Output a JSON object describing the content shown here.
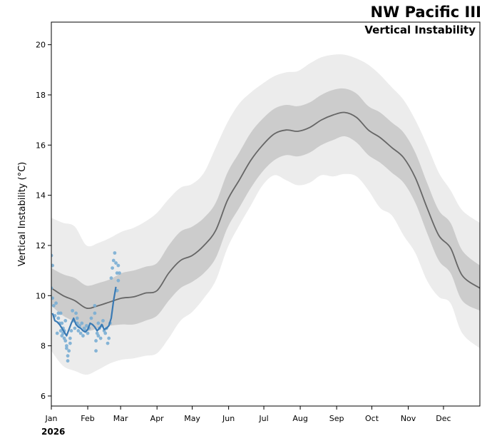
{
  "chart_data": {
    "type": "line",
    "title": "NW Pacific III",
    "subtitle": "Vertical Instability",
    "ylabel": "Vertical Instability ($^\\circ$C)",
    "ylabel_display": "Vertical Instability (°C)",
    "xlabel": "",
    "year_label": "2026",
    "xlim_day": [
      0,
      365
    ],
    "ylim": [
      5.6,
      20.9
    ],
    "yticks": [
      6,
      8,
      10,
      12,
      14,
      16,
      18,
      20
    ],
    "months": [
      {
        "label": "Jan",
        "day": 0
      },
      {
        "label": "Feb",
        "day": 31
      },
      {
        "label": "Mar",
        "day": 59
      },
      {
        "label": "Apr",
        "day": 90
      },
      {
        "label": "May",
        "day": 120
      },
      {
        "label": "Jun",
        "day": 151
      },
      {
        "label": "Jul",
        "day": 181
      },
      {
        "label": "Aug",
        "day": 212
      },
      {
        "label": "Sep",
        "day": 243
      },
      {
        "label": "Oct",
        "day": 273
      },
      {
        "label": "Nov",
        "day": 304
      },
      {
        "label": "Dec",
        "day": 334
      }
    ],
    "climatology": {
      "day": [
        0,
        10,
        20,
        30,
        40,
        50,
        60,
        70,
        80,
        90,
        100,
        110,
        120,
        130,
        140,
        150,
        160,
        170,
        180,
        190,
        200,
        210,
        220,
        230,
        240,
        250,
        260,
        270,
        280,
        290,
        300,
        310,
        320,
        330,
        340,
        350,
        365
      ],
      "mean": [
        10.3,
        10.0,
        9.8,
        9.5,
        9.6,
        9.75,
        9.9,
        9.95,
        10.1,
        10.2,
        10.9,
        11.4,
        11.6,
        12.0,
        12.6,
        13.8,
        14.6,
        15.4,
        16.0,
        16.45,
        16.6,
        16.55,
        16.7,
        17.0,
        17.2,
        17.3,
        17.1,
        16.6,
        16.3,
        15.9,
        15.5,
        14.7,
        13.5,
        12.4,
        11.9,
        10.8,
        10.3
      ],
      "inner_lower": [
        9.6,
        9.2,
        8.95,
        8.6,
        8.7,
        8.8,
        8.85,
        8.85,
        9.0,
        9.2,
        9.8,
        10.3,
        10.55,
        10.9,
        11.5,
        12.7,
        13.5,
        14.3,
        14.95,
        15.4,
        15.6,
        15.55,
        15.7,
        16.0,
        16.2,
        16.35,
        16.1,
        15.6,
        15.3,
        14.9,
        14.5,
        13.7,
        12.5,
        11.4,
        10.9,
        9.8,
        9.4
      ],
      "inner_upper": [
        11.1,
        10.85,
        10.7,
        10.4,
        10.5,
        10.65,
        10.9,
        11.0,
        11.15,
        11.3,
        12.0,
        12.55,
        12.75,
        13.1,
        13.7,
        14.9,
        15.7,
        16.5,
        17.05,
        17.45,
        17.6,
        17.55,
        17.7,
        18.0,
        18.2,
        18.25,
        18.05,
        17.55,
        17.3,
        16.9,
        16.5,
        15.7,
        14.5,
        13.4,
        12.9,
        11.8,
        11.2
      ],
      "outer_lower": [
        7.8,
        7.2,
        7.0,
        6.85,
        7.05,
        7.3,
        7.45,
        7.5,
        7.6,
        7.7,
        8.3,
        9.0,
        9.35,
        9.9,
        10.6,
        11.9,
        12.8,
        13.6,
        14.4,
        14.8,
        14.6,
        14.4,
        14.5,
        14.8,
        14.75,
        14.85,
        14.75,
        14.2,
        13.5,
        13.2,
        12.4,
        11.7,
        10.6,
        9.95,
        9.7,
        8.5,
        7.9
      ],
      "outer_upper": [
        13.1,
        12.9,
        12.75,
        12.0,
        12.1,
        12.3,
        12.55,
        12.7,
        12.95,
        13.3,
        13.85,
        14.3,
        14.45,
        14.9,
        15.9,
        16.9,
        17.65,
        18.1,
        18.45,
        18.75,
        18.9,
        18.95,
        19.25,
        19.5,
        19.6,
        19.6,
        19.45,
        19.2,
        18.8,
        18.3,
        17.8,
        17.0,
        16.0,
        14.9,
        14.2,
        13.4,
        12.9
      ]
    },
    "observed_2026": {
      "day": [
        1,
        3,
        5,
        7,
        9,
        11,
        13,
        15,
        17,
        19,
        21,
        23,
        25,
        27,
        29,
        31,
        33,
        35,
        37,
        39,
        41,
        43,
        45,
        47,
        49,
        51,
        53,
        55
      ],
      "value": [
        9.3,
        9.0,
        8.95,
        8.85,
        8.7,
        8.55,
        8.4,
        8.65,
        8.9,
        9.1,
        8.85,
        8.75,
        8.7,
        8.6,
        8.55,
        8.65,
        8.9,
        8.85,
        8.75,
        8.6,
        8.7,
        8.85,
        8.65,
        8.7,
        8.8,
        9.1,
        9.8,
        10.35
      ]
    },
    "ensemble_points": {
      "day": [
        0,
        0,
        1,
        1,
        2,
        3,
        4,
        5,
        6,
        6,
        7,
        8,
        8,
        9,
        9,
        10,
        10,
        11,
        11,
        12,
        12,
        13,
        13,
        14,
        14,
        15,
        16,
        16,
        17,
        18,
        19,
        20,
        21,
        22,
        22,
        23,
        24,
        25,
        26,
        27,
        28,
        29,
        30,
        31,
        32,
        34,
        37,
        37,
        38,
        38,
        39,
        40,
        40,
        41,
        42,
        43,
        44,
        45,
        46,
        47,
        48,
        49,
        50,
        51,
        52,
        53,
        54,
        55,
        56,
        56,
        57,
        57,
        58
      ],
      "value": [
        11.6,
        10.3,
        11.2,
        9.9,
        9.6,
        9.2,
        9.7,
        8.5,
        9.3,
        9.1,
        8.9,
        8.6,
        9.3,
        8.4,
        8.9,
        8.5,
        8.7,
        8.3,
        8.6,
        8.2,
        9.0,
        8.0,
        7.9,
        7.4,
        7.6,
        7.8,
        8.1,
        8.3,
        8.6,
        9.4,
        9.0,
        8.7,
        9.3,
        9.1,
        8.9,
        8.6,
        8.8,
        8.5,
        8.9,
        8.4,
        8.7,
        8.6,
        8.8,
        8.5,
        8.7,
        9.1,
        9.6,
        9.3,
        8.2,
        7.8,
        8.5,
        8.9,
        8.4,
        8.7,
        8.3,
        8.8,
        9.0,
        8.6,
        8.5,
        8.7,
        8.1,
        8.3,
        8.9,
        10.7,
        11.1,
        11.4,
        11.7,
        11.3,
        10.2,
        10.9,
        11.2,
        10.6,
        10.9
      ]
    },
    "legend": "none",
    "grid": false,
    "colors": {
      "outer_band": "#ececec",
      "inner_band": "#cccccc",
      "mean_line": "#666666",
      "observed_line": "#3a7ab4",
      "points": "#7aaed4",
      "axis": "#000000"
    }
  }
}
